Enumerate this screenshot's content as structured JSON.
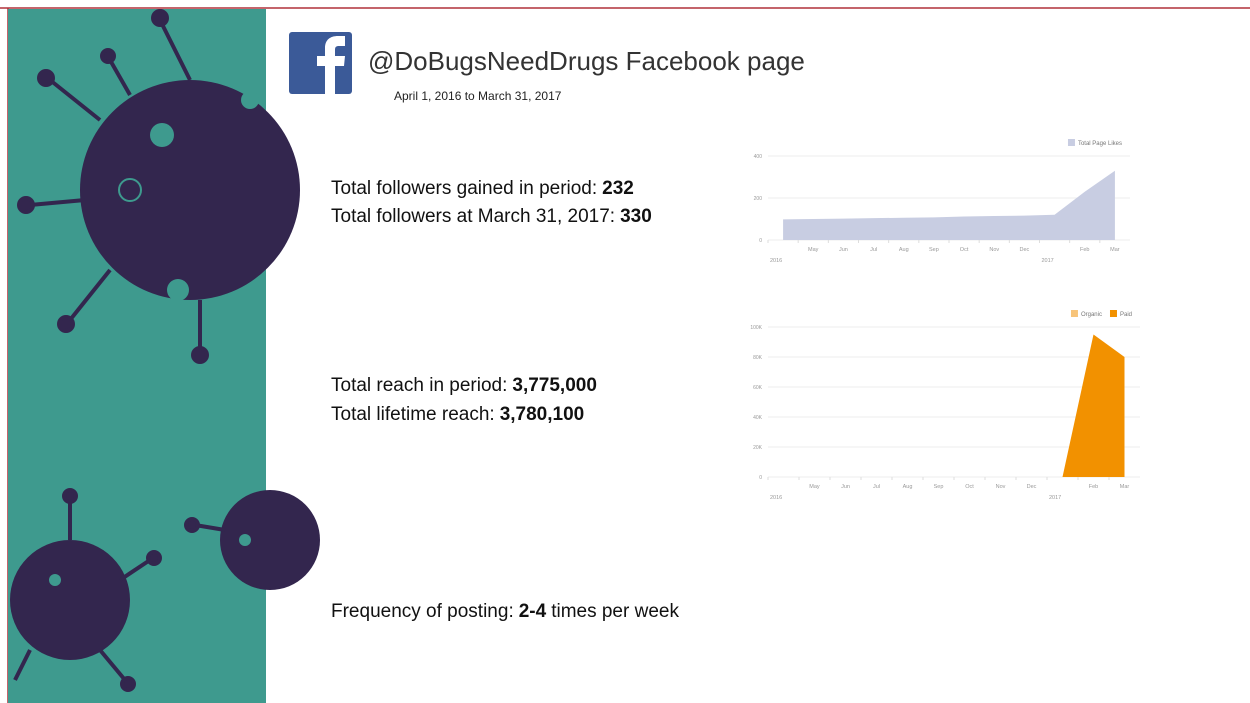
{
  "header": {
    "title": "@DoBugsNeedDrugs Facebook page",
    "subtitle": "April 1, 2016 to March 31, 2017"
  },
  "stats": [
    {
      "label": "Total followers gained in period:",
      "value": "232"
    },
    {
      "label": "Total followers at March 31, 2017:",
      "value": "330"
    },
    {
      "label": "Total reach in period:",
      "value": "3,775,000"
    },
    {
      "label": "Total lifetime reach:",
      "value": "3,780,100"
    }
  ],
  "frequency": {
    "label": "Frequency of posting:",
    "value": "2-4",
    "suffix": "times per week"
  },
  "chart_data": [
    {
      "type": "area",
      "categories": [
        null,
        "May",
        "Jun",
        "Jul",
        "Aug",
        "Sep",
        "Oct",
        "Nov",
        "Dec",
        null,
        "Feb",
        "Mar"
      ],
      "year_labels": [
        "2016",
        "2017"
      ],
      "series": [
        {
          "name": "Total Page Likes",
          "color": "#c8cde2",
          "values": [
            98,
            100,
            102,
            104,
            106,
            108,
            112,
            114,
            116,
            120,
            230,
            330
          ]
        }
      ],
      "ylim": [
        0,
        400
      ],
      "yticks": [
        0,
        200,
        400
      ],
      "grid": true
    },
    {
      "type": "area",
      "stacked": true,
      "categories": [
        null,
        "May",
        "Jun",
        "Jul",
        "Aug",
        "Sep",
        "Oct",
        "Nov",
        "Dec",
        null,
        "Feb",
        "Mar"
      ],
      "year_labels": [
        "2016",
        "2017"
      ],
      "series": [
        {
          "name": "Organic",
          "color": "#f7c47a",
          "values": [
            0,
            0,
            0,
            0,
            0,
            0,
            0,
            0,
            0,
            0,
            0,
            0
          ]
        },
        {
          "name": "Paid",
          "color": "#f29100",
          "values": [
            0,
            0,
            0,
            0,
            0,
            0,
            0,
            0,
            0,
            0,
            95000,
            80000
          ]
        }
      ],
      "ylim": [
        0,
        100000
      ],
      "yticks": [
        0,
        {
          "value": 20000,
          "label": "20K"
        },
        {
          "value": 40000,
          "label": "40K"
        },
        {
          "value": 60000,
          "label": "60K"
        },
        {
          "value": 80000,
          "label": "80K"
        },
        {
          "value": 100000,
          "label": "100K"
        }
      ],
      "grid": true
    }
  ]
}
